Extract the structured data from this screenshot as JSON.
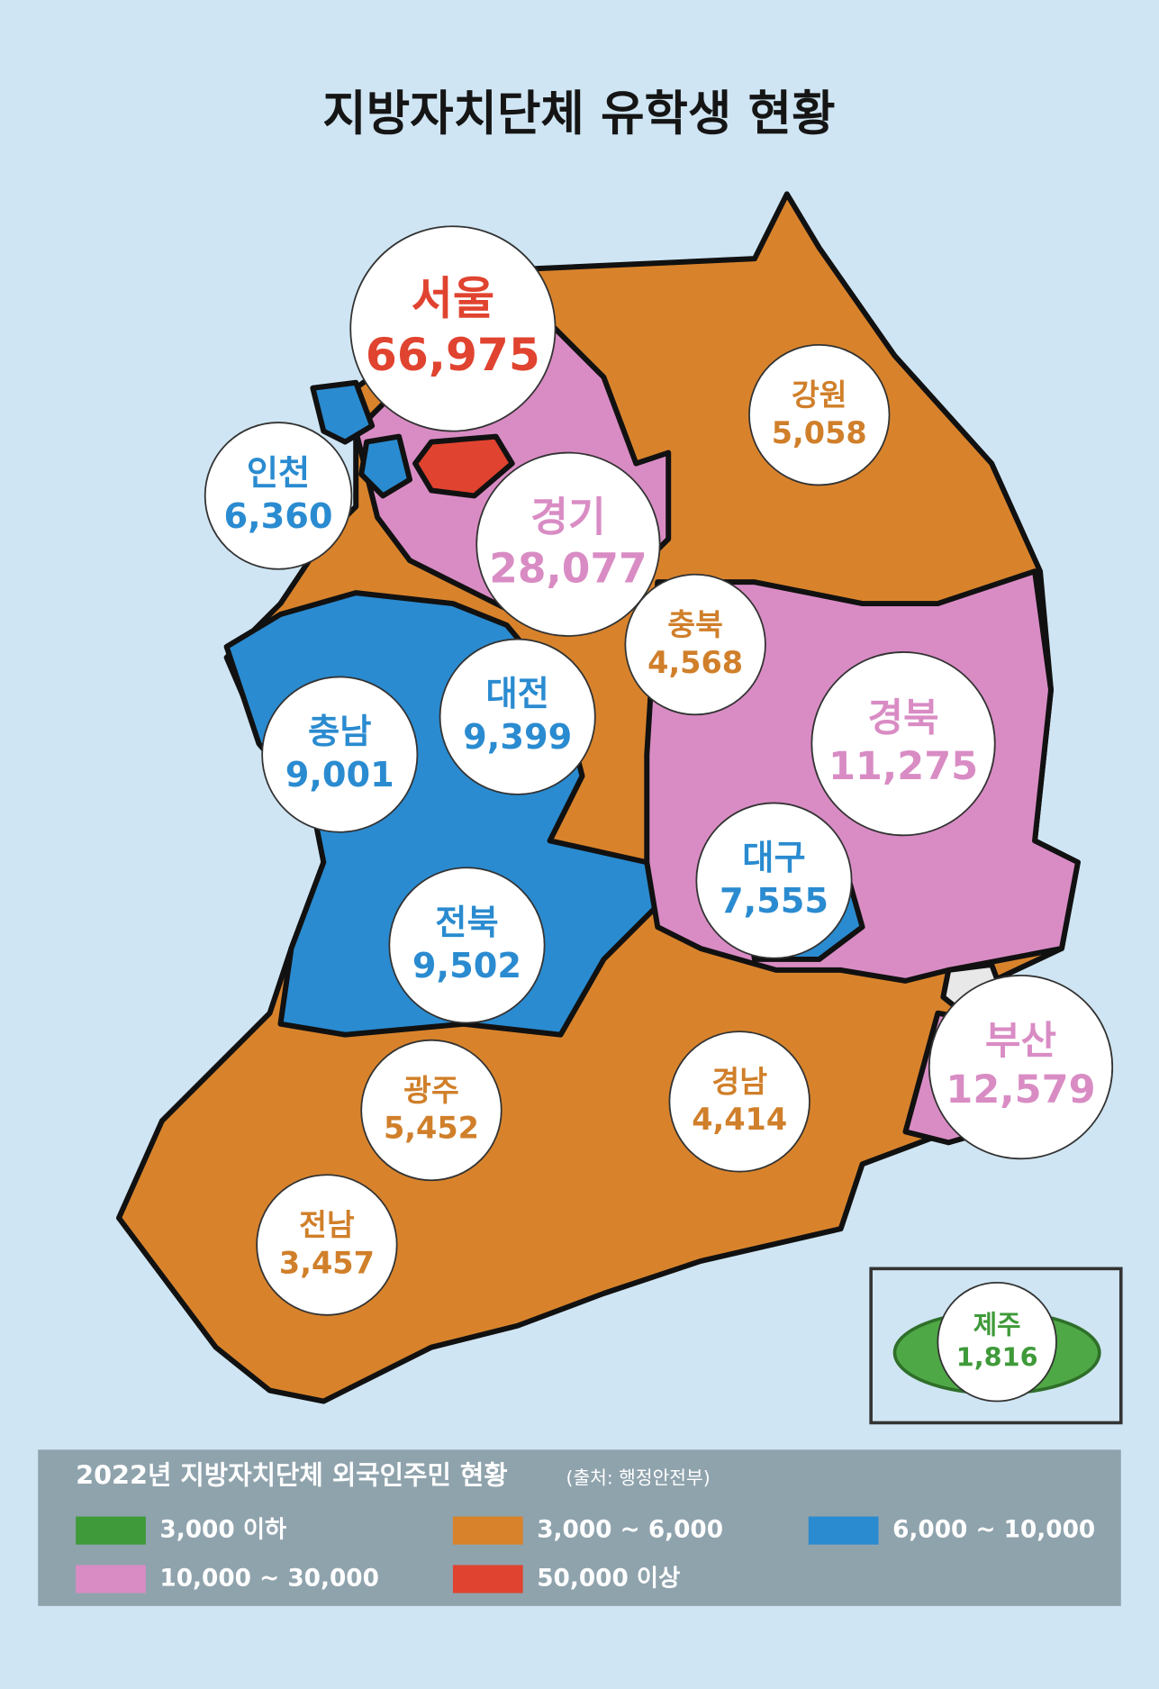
{
  "title": "지방자치단체 유학생 현황",
  "regions": [
    {
      "name": "서울",
      "value": "66,975",
      "color": "#e0432f"
    },
    {
      "name": "인천",
      "value": "6,360",
      "color": "#2a8bd0"
    },
    {
      "name": "경기",
      "value": "28,077",
      "color": "#d98cc4"
    },
    {
      "name": "강원",
      "value": "5,058",
      "color": "#d07f2a"
    },
    {
      "name": "충북",
      "value": "4,568",
      "color": "#d07f2a"
    },
    {
      "name": "대전",
      "value": "9,399",
      "color": "#2a8bd0"
    },
    {
      "name": "충남",
      "value": "9,001",
      "color": "#2a8bd0"
    },
    {
      "name": "경북",
      "value": "11,275",
      "color": "#d98cc4"
    },
    {
      "name": "대구",
      "value": "7,555",
      "color": "#2a8bd0"
    },
    {
      "name": "전북",
      "value": "9,502",
      "color": "#2a8bd0"
    },
    {
      "name": "부산",
      "value": "12,579",
      "color": "#d98cc4"
    },
    {
      "name": "광주",
      "value": "5,452",
      "color": "#d07f2a"
    },
    {
      "name": "경남",
      "value": "4,414",
      "color": "#d07f2a"
    },
    {
      "name": "전남",
      "value": "3,457",
      "color": "#d07f2a"
    },
    {
      "name": "제주",
      "value": "1,816",
      "color": "#3f9a3a"
    }
  ],
  "legend": {
    "title": "2022년 지방자치단체 외국인주민 현황",
    "source": "(출처: 행정안전부)",
    "items": [
      {
        "label": "3,000 이하",
        "color": "#3f9a3a"
      },
      {
        "label": "3,000 ~ 6,000",
        "color": "#d8832c"
      },
      {
        "label": "6,000 ~ 10,000",
        "color": "#2a8bd0"
      },
      {
        "label": "10,000 ~ 30,000",
        "color": "#d98cc4"
      },
      {
        "label": "50,000 이상",
        "color": "#e0432f"
      }
    ]
  }
}
